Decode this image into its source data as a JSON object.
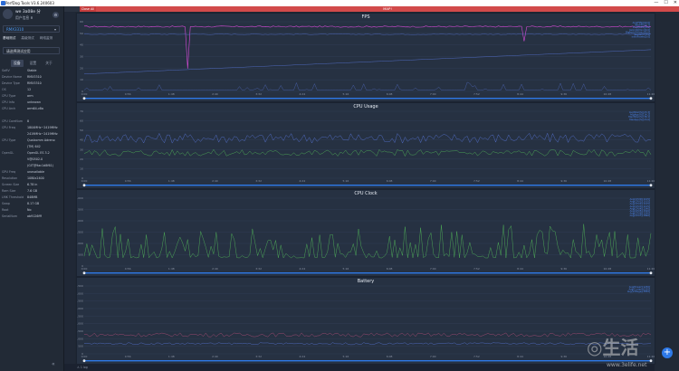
{
  "window": {
    "title": "PerfDog Tools V3.6.240603",
    "min": "—",
    "max": "☐",
    "close": "✕"
  },
  "profile": {
    "name": "we 3a08e 分",
    "status": "用户信息 ⬆",
    "gear": "⚙"
  },
  "device": {
    "name": "RMX3310",
    "chevron": "▾"
  },
  "nav_tabs": [
    "基础测试",
    "高级测试",
    "网络监测"
  ],
  "app_select": "请选择测试应用",
  "sub_tabs": [
    "设备",
    "设置",
    "关于"
  ],
  "device_info": [
    {
      "k": "SoftV",
      "v": "Stable"
    },
    {
      "k": "Device Name",
      "v": "RMX3310"
    },
    {
      "k": "Device Type",
      "v": "RMX3310"
    },
    {
      "k": "OS",
      "v": "12"
    },
    {
      "k": "CPU Type",
      "v": "arm"
    },
    {
      "k": "CPU Info",
      "v": "unknown"
    },
    {
      "k": "CPU Arch",
      "v": "arm64-v8a"
    },
    {
      "k": "",
      "v": ""
    },
    {
      "k": "CPU CoreNum",
      "v": "8"
    },
    {
      "k": "CPU Freq",
      "v": "1804MHz~2419MHz"
    },
    {
      "k": "",
      "v": "2419MHz~2419MHz"
    },
    {
      "k": "CPU Type",
      "v": "Qualcomm Adreno"
    },
    {
      "k": "",
      "v": "(TM) 642"
    },
    {
      "k": "OpenGL",
      "v": "OpenGL ES 3.2"
    },
    {
      "k": "",
      "v": "V@0502.0"
    },
    {
      "k": "",
      "v": "(GIT@9ac1d8f61)"
    },
    {
      "k": "GPU Freq",
      "v": "unavailable"
    },
    {
      "k": "Resolution",
      "v": "1080x2400"
    },
    {
      "k": "Screen Size",
      "v": "6.78 in"
    },
    {
      "k": "Ram Size",
      "v": "7.6 GB"
    },
    {
      "k": "LMK Threshold",
      "v": "848MB"
    },
    {
      "k": "Swap",
      "v": "8.17 GB"
    },
    {
      "k": "Root",
      "v": "No"
    },
    {
      "k": "SerialNum",
      "v": "ab9126fff"
    }
  ],
  "collapse": "«",
  "tabs": {
    "close_label": "Close All",
    "main_label": "MAP!"
  },
  "footer": "⚠ 1 log",
  "add_button": "+",
  "watermark": {
    "text": "◎生活",
    "url": "www.3elife.net"
  },
  "colors": {
    "accent": "#2e79e8",
    "fps": "#d64bd8",
    "usage": "#5b79e0",
    "clock": "#56c25a",
    "battery": "#c0507e"
  },
  "x_ticks": [
    "0:00",
    "0:56",
    "1:48",
    "2:40",
    "3:32",
    "4:24",
    "5:16",
    "6:08",
    "7:00",
    "7:52",
    "8:44",
    "9:36",
    "10:28",
    "11:20"
  ],
  "chart_data": [
    {
      "title": "FPS",
      "type": "line",
      "ylabel": "FPS",
      "yticks": [
        "0",
        "10",
        "20",
        "30",
        "40",
        "50",
        "60"
      ],
      "ylim": [
        0,
        60
      ],
      "legend": [
        "Avg(FPS)[60.0]",
        "Var(FPS)[0.7]",
        "Drop(FPS)[8.0]",
        "Jank(/10min)[0.0]",
        "BigJank(/10min)[0.0]",
        "Stutter[0.0%]",
        "InterFrame[0.0]"
      ],
      "series": [
        {
          "name": "FPS",
          "color": "#d64bd8"
        },
        {
          "name": "Jank",
          "color": "#5b79e0"
        }
      ]
    },
    {
      "title": "CPU Usage",
      "type": "line",
      "ylabel": "%",
      "yticks": [
        "0",
        "10",
        "20",
        "30",
        "40",
        "50",
        "60",
        "70"
      ],
      "ylim": [
        0,
        70
      ],
      "legend": [
        "AvgTotal(%)[23.3]",
        "AvgApp(%)[14.2]",
        "MaxTotal(%)[38.1]",
        "MaxApp(%)[23.0]"
      ],
      "series": [
        {
          "name": "Total",
          "color": "#5b79e0"
        },
        {
          "name": "App",
          "color": "#56c25a"
        }
      ]
    },
    {
      "title": "CPU Clock",
      "type": "line",
      "ylabel": "MHz",
      "yticks": [
        "0",
        "500",
        "1,000",
        "1,500",
        "2,000",
        "2,500",
        "3,000"
      ],
      "ylim": [
        0,
        3000
      ],
      "legend": [
        "Avg(CPU0)[1105]",
        "Avg(CPU1)[1105]",
        "Avg(CPU2)[1105]",
        "Avg(CPU3)[1105]",
        "Avg(CPU4)[1540]",
        "Avg(CPU5)[1540]",
        "Avg(CPU6)[1540]",
        "Avg(CPU7)[1860]"
      ],
      "series": [
        {
          "name": "CPU",
          "color": "#56c25a"
        }
      ]
    },
    {
      "title": "Battery",
      "type": "line",
      "ylabel": "mW",
      "yticks": [
        "0",
        "500",
        "1,000",
        "1,500",
        "2,000",
        "2,500",
        "3,000",
        "3,500",
        "4,000",
        "4,500"
      ],
      "ylim": [
        0,
        4500
      ],
      "legend": [
        "Avg(Power)[1230]",
        "Avg(Current)[320]",
        "Avg(Voltage)[3850]"
      ],
      "series": [
        {
          "name": "Power",
          "color": "#c0507e"
        },
        {
          "name": "Current",
          "color": "#5b79e0"
        }
      ]
    }
  ]
}
